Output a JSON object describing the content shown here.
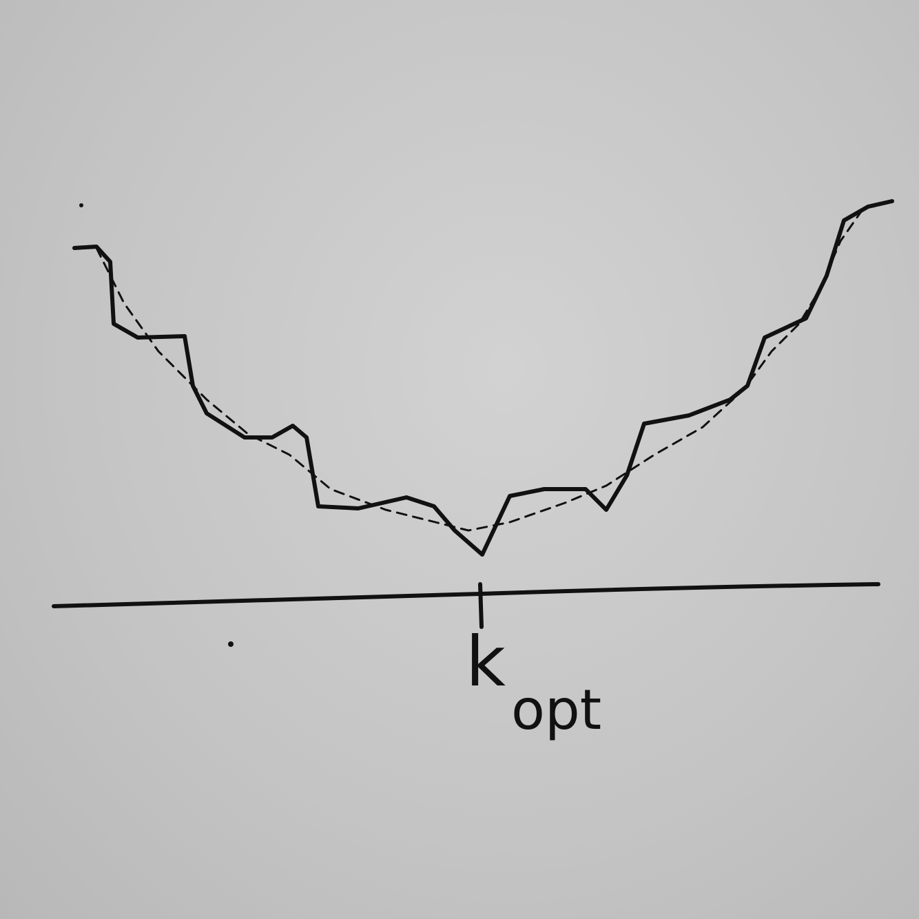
{
  "label": {
    "main": "k",
    "subscript": "opt"
  }
}
